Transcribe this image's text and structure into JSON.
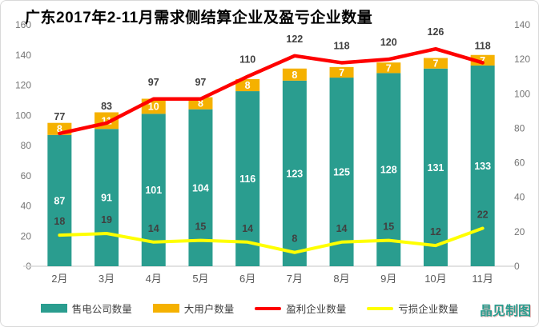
{
  "title": "广东2017年2-11月需求侧结算企业及盈亏企业数量",
  "watermark": "晶见制图",
  "colors": {
    "teal": "#2A9D8F",
    "orange": "#F5B100",
    "red": "#FE0000",
    "yellow": "#FFFF00",
    "axis_tick_text": "#757575",
    "x_label_text": "#595959",
    "value_label_dark": "#404040",
    "value_label_light": "#ffffff",
    "axis_line": "#d9d9d9"
  },
  "legend": [
    {
      "key": "sell-companies",
      "label": "售电公司数量",
      "swatch": "rect",
      "color_key": "teal"
    },
    {
      "key": "large-users",
      "label": "大用户数量",
      "swatch": "rect",
      "color_key": "orange"
    },
    {
      "key": "profit",
      "label": "盈利企业数量",
      "swatch": "line",
      "color_key": "red"
    },
    {
      "key": "loss",
      "label": "亏损企业数量",
      "swatch": "line",
      "color_key": "yellow"
    }
  ],
  "chart_data": {
    "type": "bar",
    "subtype": "stacked-columns-with-dual-axis-lines",
    "title": "广东2017年2-11月需求侧结算企业及盈亏企业数量",
    "categories": [
      "2月",
      "3月",
      "4月",
      "5月",
      "6月",
      "7月",
      "8月",
      "9月",
      "10月",
      "11月"
    ],
    "series": [
      {
        "key": "sell-companies",
        "name": "售电公司数量",
        "type": "column",
        "stack": true,
        "axis": "left",
        "color_key": "teal",
        "values": [
          87,
          91,
          101,
          104,
          116,
          123,
          125,
          128,
          131,
          133
        ]
      },
      {
        "key": "large-users",
        "name": "大用户数量",
        "type": "column",
        "stack": true,
        "axis": "left",
        "color_key": "orange",
        "values": [
          8,
          11,
          10,
          8,
          8,
          8,
          7,
          7,
          7,
          7
        ]
      },
      {
        "key": "profit",
        "name": "盈利企业数量",
        "type": "line",
        "axis": "right",
        "color_key": "red",
        "values": [
          77,
          83,
          97,
          97,
          110,
          122,
          118,
          120,
          126,
          118
        ]
      },
      {
        "key": "loss",
        "name": "亏损企业数量",
        "type": "line",
        "axis": "right",
        "color_key": "yellow",
        "values": [
          18,
          19,
          14,
          15,
          14,
          8,
          14,
          15,
          12,
          22
        ]
      }
    ],
    "left_axis": {
      "min": 0,
      "max": 160,
      "step": 20,
      "ticks": [
        0,
        20,
        40,
        60,
        80,
        100,
        120,
        140,
        160
      ]
    },
    "right_axis": {
      "min": 0,
      "max": 140,
      "step": 20,
      "ticks": [
        0,
        20,
        40,
        60,
        80,
        100,
        120,
        140
      ]
    },
    "grid": false,
    "legend_position": "bottom"
  }
}
